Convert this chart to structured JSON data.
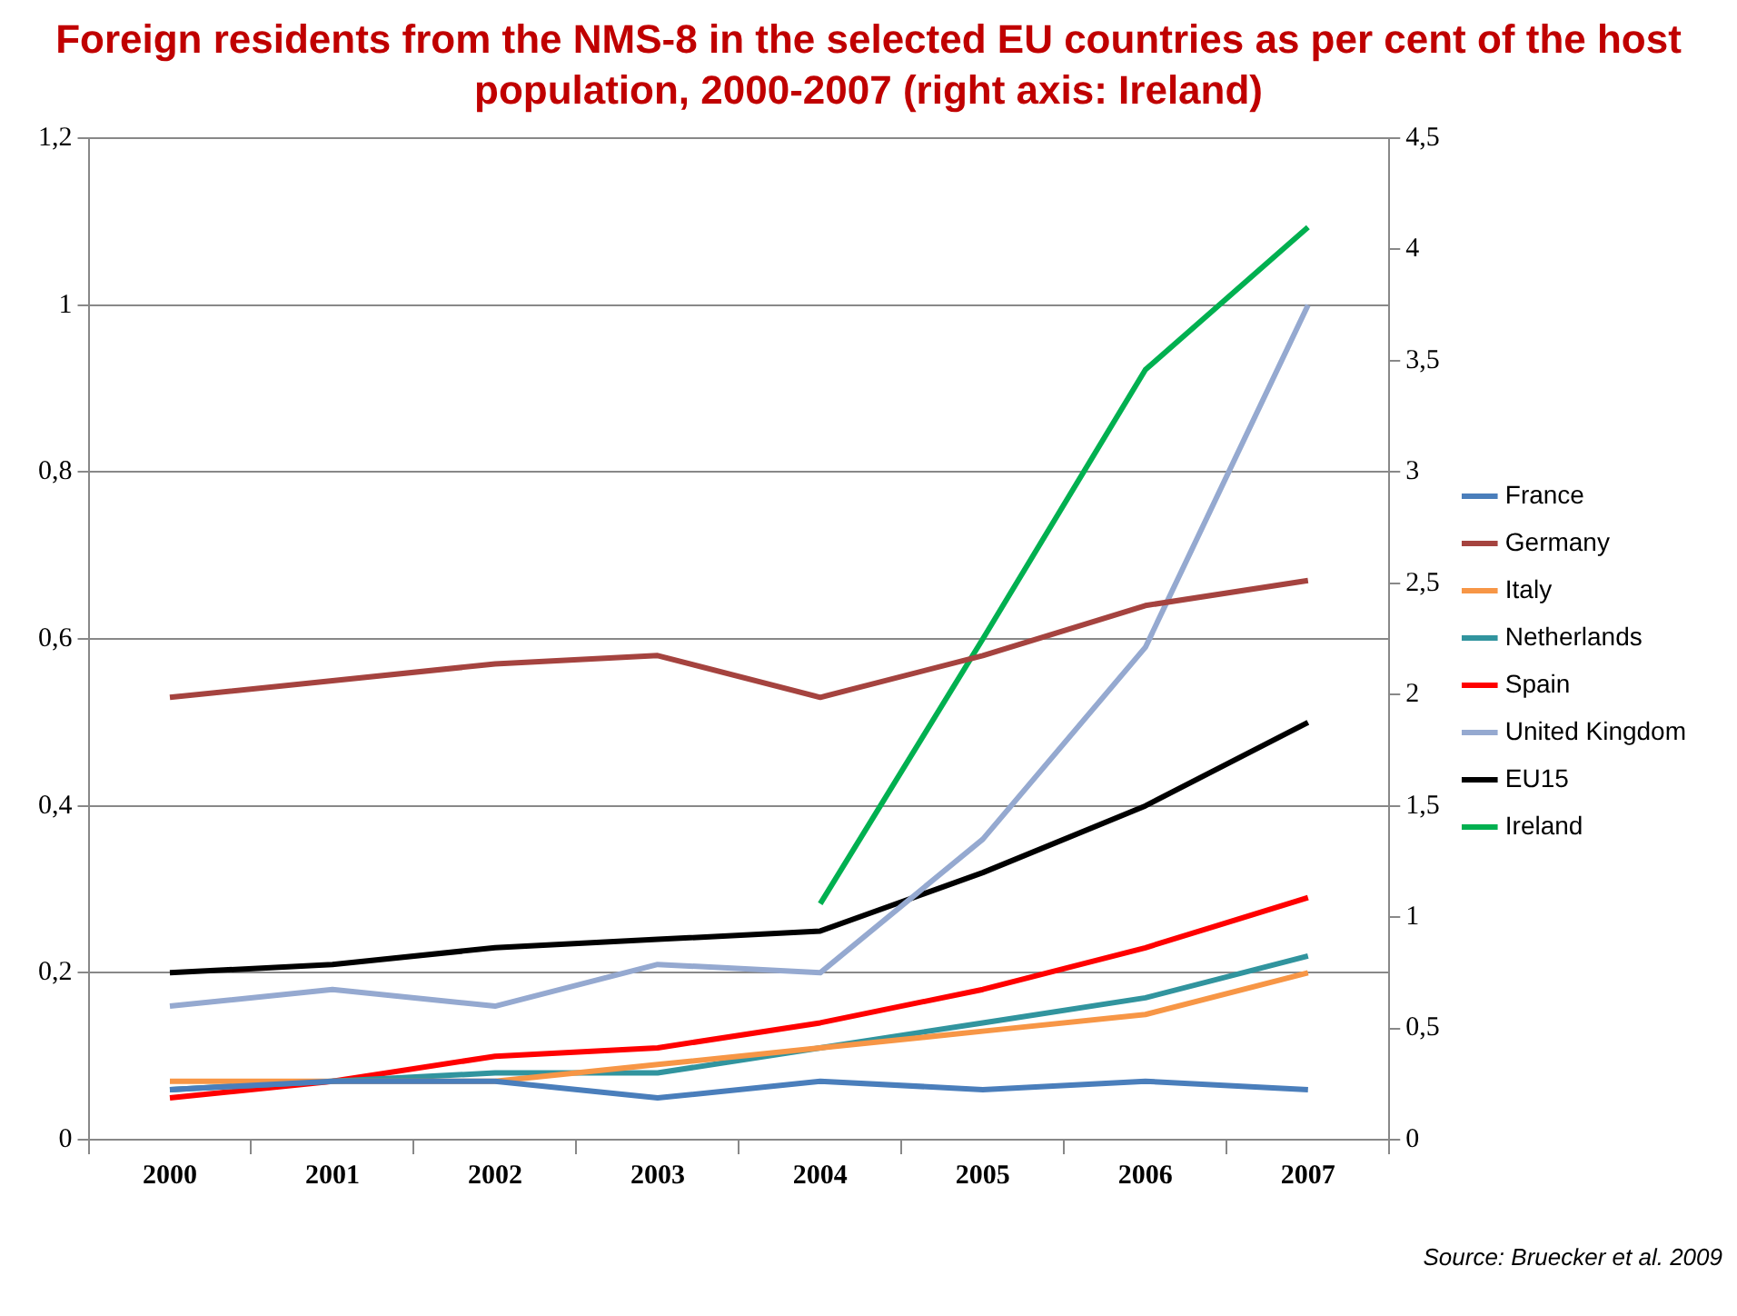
{
  "chart_data": {
    "type": "line",
    "title": "Foreign residents from the NMS-8 in the selected EU countries as per cent of the host population, 2000-2007 (right axis: Ireland)",
    "categories": [
      "2000",
      "2001",
      "2002",
      "2003",
      "2004",
      "2005",
      "2006",
      "2007"
    ],
    "series": [
      {
        "name": "France",
        "color": "#4a7ebb",
        "values": [
          0.06,
          0.07,
          0.07,
          0.05,
          0.07,
          0.06,
          0.07,
          0.06
        ]
      },
      {
        "name": "Germany",
        "color": "#a5433f",
        "values": [
          0.53,
          0.55,
          0.57,
          0.58,
          0.53,
          0.58,
          0.64,
          0.67
        ]
      },
      {
        "name": "Italy",
        "color": "#f79646",
        "values": [
          0.07,
          0.07,
          0.07,
          0.09,
          0.11,
          0.13,
          0.15,
          0.2
        ]
      },
      {
        "name": "Netherlands",
        "color": "#31949e",
        "values": [
          0.06,
          0.07,
          0.08,
          0.08,
          0.11,
          0.14,
          0.17,
          0.22
        ]
      },
      {
        "name": "Spain",
        "color": "#ff0000",
        "values": [
          0.05,
          0.07,
          0.1,
          0.11,
          0.14,
          0.18,
          0.23,
          0.29
        ]
      },
      {
        "name": "United Kingdom",
        "color": "#95a9d0",
        "values": [
          0.16,
          0.18,
          0.16,
          0.21,
          0.2,
          0.36,
          0.59,
          1.0
        ]
      },
      {
        "name": "EU15",
        "color": "#000000",
        "values": [
          0.2,
          0.21,
          0.23,
          0.24,
          0.25,
          0.32,
          0.4,
          0.5
        ]
      },
      {
        "name": "Ireland",
        "color": "#00b050",
        "axis": "y2",
        "values": [
          null,
          null,
          null,
          null,
          1.06,
          2.25,
          3.46,
          4.1
        ]
      }
    ],
    "ylim": [
      0,
      1.2
    ],
    "yticks": [
      0,
      {
        "value": 0.2,
        "label": "0,2"
      },
      {
        "value": 0.4,
        "label": "0,4"
      },
      {
        "value": 0.6,
        "label": "0,6"
      },
      {
        "value": 0.8,
        "label": "0,8"
      },
      1,
      {
        "value": 1.2,
        "label": "1,2"
      }
    ],
    "y2lim": [
      0,
      4.5
    ],
    "y2ticks": [
      0,
      {
        "value": 0.5,
        "label": "0,5"
      },
      1,
      {
        "value": 1.5,
        "label": "1,5"
      },
      2,
      {
        "value": 2.5,
        "label": "2,5"
      },
      3,
      {
        "value": 3.5,
        "label": "3,5"
      },
      4,
      {
        "value": 4.5,
        "label": "4,5"
      }
    ],
    "grid": "y",
    "legend": "right",
    "annotations": [
      "Source: Bruecker et al. 2009"
    ]
  }
}
